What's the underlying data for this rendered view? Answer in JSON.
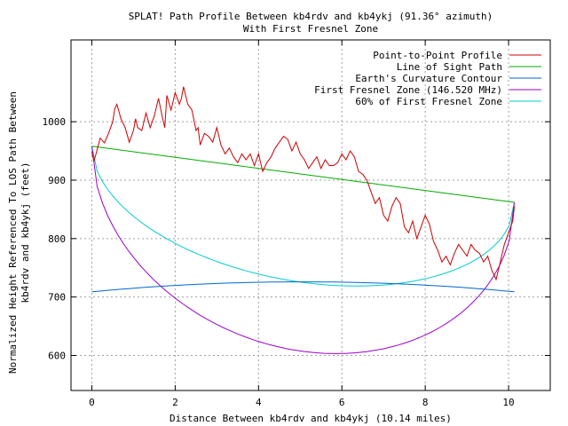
{
  "chart_data": {
    "type": "line",
    "title": "SPLAT! Path Profile Between kb4rdv and kb4ykj (91.36° azimuth)",
    "subtitle": "With First Fresnel Zone",
    "xlabel": "Distance Between kb4rdv and kb4ykj (10.14 miles)",
    "ylabel_line1": "Normalized Height Referenced To LOS Path Between",
    "ylabel_line2": "kb4rdv and kb4ykj (feet)",
    "xlim": [
      -0.5,
      11
    ],
    "ylim": [
      540,
      1140
    ],
    "xticks": [
      0,
      2,
      4,
      6,
      8,
      10
    ],
    "yticks": [
      600,
      700,
      800,
      900,
      1000
    ],
    "grid": true,
    "legend_position": "top-right",
    "series": [
      {
        "name": "Point-to-Point Profile",
        "color": "#cc0000",
        "x": [
          0,
          0.05,
          0.1,
          0.2,
          0.3,
          0.4,
          0.5,
          0.55,
          0.6,
          0.7,
          0.8,
          0.9,
          1.0,
          1.05,
          1.1,
          1.2,
          1.25,
          1.3,
          1.4,
          1.5,
          1.6,
          1.7,
          1.75,
          1.8,
          1.9,
          2.0,
          2.1,
          2.15,
          2.2,
          2.3,
          2.4,
          2.5,
          2.55,
          2.6,
          2.7,
          2.8,
          2.9,
          3.0,
          3.1,
          3.2,
          3.3,
          3.4,
          3.5,
          3.6,
          3.7,
          3.8,
          3.9,
          4.0,
          4.1,
          4.2,
          4.3,
          4.4,
          4.5,
          4.6,
          4.7,
          4.8,
          4.9,
          5.0,
          5.1,
          5.2,
          5.3,
          5.4,
          5.5,
          5.6,
          5.7,
          5.8,
          5.9,
          6.0,
          6.1,
          6.2,
          6.3,
          6.4,
          6.5,
          6.6,
          6.7,
          6.8,
          6.9,
          7.0,
          7.1,
          7.2,
          7.3,
          7.4,
          7.5,
          7.6,
          7.7,
          7.8,
          7.9,
          8.0,
          8.1,
          8.2,
          8.3,
          8.4,
          8.5,
          8.6,
          8.7,
          8.8,
          8.9,
          9.0,
          9.1,
          9.2,
          9.3,
          9.4,
          9.5,
          9.6,
          9.7,
          9.8,
          9.9,
          10.0,
          10.1,
          10.14
        ],
        "y": [
          948,
          932,
          945,
          972,
          964,
          980,
          1000,
          1022,
          1030,
          1005,
          990,
          965,
          985,
          1005,
          990,
          985,
          1000,
          1015,
          990,
          1010,
          1040,
          1005,
          990,
          1045,
          1020,
          1050,
          1030,
          1040,
          1060,
          1030,
          1020,
          985,
          990,
          960,
          980,
          975,
          965,
          990,
          960,
          945,
          955,
          940,
          930,
          945,
          935,
          945,
          925,
          945,
          915,
          930,
          940,
          955,
          965,
          975,
          970,
          950,
          965,
          945,
          935,
          920,
          930,
          940,
          920,
          935,
          925,
          925,
          930,
          945,
          935,
          950,
          940,
          915,
          910,
          900,
          880,
          860,
          870,
          840,
          830,
          855,
          870,
          860,
          820,
          810,
          830,
          800,
          820,
          840,
          825,
          795,
          780,
          760,
          770,
          755,
          775,
          790,
          780,
          770,
          790,
          780,
          775,
          760,
          770,
          745,
          730,
          760,
          790,
          810,
          830,
          855
        ]
      },
      {
        "name": "Line of Sight Path",
        "color": "#00aa00",
        "x": [
          0,
          10.14
        ],
        "y": [
          958,
          862
        ]
      },
      {
        "name": "Earth's Curvature Contour",
        "color": "#0066cc",
        "type": "curve",
        "endpoints_y": [
          709,
          709
        ],
        "peak_y": 726
      },
      {
        "name": "First Fresnel Zone (146.520 MHz)",
        "color": "#9900cc",
        "type": "curve",
        "endpoints_y": [
          958,
          862
        ],
        "min_y": 607
      },
      {
        "name": "60% of First Fresnel Zone",
        "color": "#00cccc",
        "type": "curve",
        "endpoints_y": [
          958,
          862
        ],
        "min_y": 725
      }
    ]
  }
}
